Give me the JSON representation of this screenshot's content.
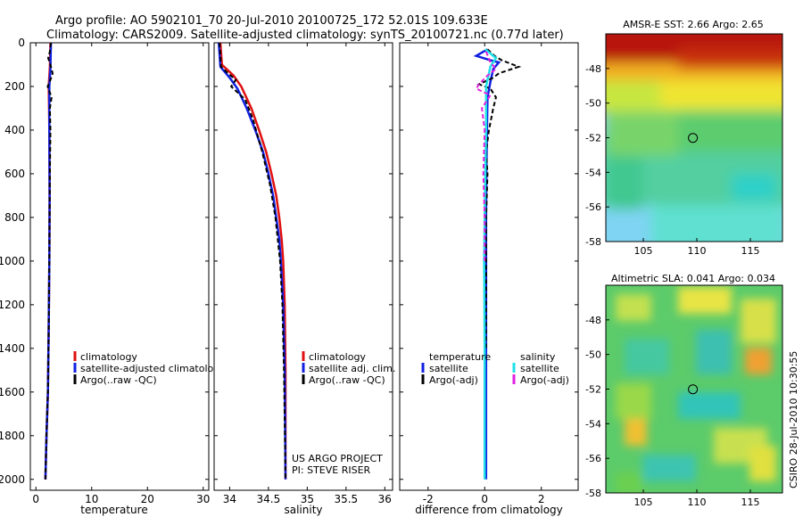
{
  "title_line1": "Argo profile: AO 5902101_70 20-Jul-2010 20100725_172 52.01S 109.633E",
  "title_line2": "Climatology: CARS2009. Satellite-adjusted climatology: synTS_20100721.nc (0.77d later)",
  "side_label": "CSIRO 28-Jul-2010 10:30:55",
  "colors": {
    "climatology": "#e01010",
    "satellite": "#1020e0",
    "argo": "#000000",
    "sal_satellite": "#20e0e8",
    "sal_argo": "#e020e0"
  },
  "chart_data": [
    {
      "type": "line",
      "name": "temperature-profile",
      "xlabel": "temperature",
      "ylabel": "",
      "xlim": [
        -1,
        31
      ],
      "ylim": [
        2050,
        0
      ],
      "xticks": [
        0,
        10,
        20,
        30
      ],
      "yticks": [
        0,
        200,
        400,
        600,
        800,
        1000,
        1200,
        1400,
        1600,
        1800,
        2000
      ],
      "series": [
        {
          "name": "climatology",
          "color": "#e01010",
          "style": "solid",
          "points": [
            [
              2.6,
              0
            ],
            [
              2.55,
              60
            ],
            [
              2.5,
              110
            ],
            [
              2.3,
              200
            ],
            [
              2.4,
              400
            ],
            [
              2.45,
              700
            ],
            [
              2.4,
              1000
            ],
            [
              2.3,
              1300
            ],
            [
              2.15,
              1600
            ],
            [
              1.9,
              1800
            ],
            [
              1.7,
              2000
            ]
          ]
        },
        {
          "name": "satellite-adjusted climatology",
          "color": "#1020e0",
          "style": "solid",
          "points": [
            [
              2.7,
              0
            ],
            [
              2.65,
              60
            ],
            [
              2.6,
              120
            ],
            [
              2.4,
              200
            ],
            [
              2.4,
              400
            ],
            [
              2.45,
              700
            ],
            [
              2.4,
              1000
            ],
            [
              2.3,
              1300
            ],
            [
              2.15,
              1600
            ],
            [
              1.9,
              1800
            ],
            [
              1.7,
              2000
            ]
          ]
        },
        {
          "name": "Argo(..raw -QC)",
          "color": "#000000",
          "style": "dashed",
          "points": [
            [
              2.7,
              0
            ],
            [
              2.5,
              40
            ],
            [
              2.2,
              70
            ],
            [
              2.6,
              100
            ],
            [
              3.0,
              140
            ],
            [
              2.6,
              170
            ],
            [
              2.1,
              200
            ],
            [
              2.8,
              250
            ],
            [
              2.5,
              300
            ],
            [
              2.6,
              400
            ],
            [
              2.5,
              600
            ],
            [
              2.45,
              800
            ],
            [
              2.4,
              1000
            ],
            [
              2.3,
              1300
            ],
            [
              2.15,
              1600
            ],
            [
              1.9,
              1800
            ],
            [
              1.7,
              2000
            ]
          ]
        }
      ],
      "legend": {
        "position": "center",
        "entries": [
          "climatology",
          "satellite-adjusted climatology",
          "Argo(..raw -QC)"
        ]
      }
    },
    {
      "type": "line",
      "name": "salinity-profile",
      "xlabel": "salinity",
      "ylabel": "",
      "xlim": [
        33.8,
        36.1
      ],
      "ylim": [
        2050,
        0
      ],
      "xticks": [
        34,
        34.5,
        35,
        35.5,
        36
      ],
      "series": [
        {
          "name": "climatology",
          "color": "#e01010",
          "style": "solid",
          "points": [
            [
              33.88,
              0
            ],
            [
              33.9,
              100
            ],
            [
              34.05,
              150
            ],
            [
              34.15,
              200
            ],
            [
              34.28,
              300
            ],
            [
              34.38,
              400
            ],
            [
              34.47,
              500
            ],
            [
              34.54,
              600
            ],
            [
              34.6,
              700
            ],
            [
              34.64,
              800
            ],
            [
              34.67,
              900
            ],
            [
              34.69,
              1000
            ],
            [
              34.71,
              1200
            ],
            [
              34.72,
              1500
            ],
            [
              34.72,
              2000
            ]
          ]
        },
        {
          "name": "satellite adj. clim.",
          "color": "#1020e0",
          "style": "solid",
          "points": [
            [
              33.86,
              0
            ],
            [
              33.88,
              110
            ],
            [
              34.0,
              160
            ],
            [
              34.1,
              210
            ],
            [
              34.22,
              300
            ],
            [
              34.33,
              400
            ],
            [
              34.43,
              500
            ],
            [
              34.5,
              600
            ],
            [
              34.56,
              700
            ],
            [
              34.6,
              800
            ],
            [
              34.64,
              900
            ],
            [
              34.66,
              1000
            ],
            [
              34.69,
              1200
            ],
            [
              34.71,
              1500
            ],
            [
              34.72,
              2000
            ]
          ]
        },
        {
          "name": "Argo(..raw -QC)",
          "color": "#000000",
          "style": "dashed",
          "points": [
            [
              33.87,
              0
            ],
            [
              33.89,
              110
            ],
            [
              33.98,
              140
            ],
            [
              34.08,
              170
            ],
            [
              34.02,
              200
            ],
            [
              34.2,
              260
            ],
            [
              34.3,
              350
            ],
            [
              34.42,
              500
            ],
            [
              34.52,
              650
            ],
            [
              34.59,
              800
            ],
            [
              34.65,
              1000
            ],
            [
              34.68,
              1200
            ],
            [
              34.7,
              1500
            ],
            [
              34.72,
              2000
            ]
          ]
        }
      ],
      "legend": {
        "position": "lower-right",
        "entries": [
          "climatology",
          "satellite adj. clim.",
          "Argo(..raw -QC)"
        ]
      },
      "annotation_line1": "US ARGO PROJECT",
      "annotation_line2": "PI: STEVE RISER"
    },
    {
      "type": "line",
      "name": "difference-profile",
      "xlabel": "difference from climatology",
      "ylabel": "",
      "xlim": [
        -3,
        3.3
      ],
      "ylim": [
        2050,
        0
      ],
      "xticks": [
        -2,
        0,
        2
      ],
      "series": [
        {
          "name": "temperature satellite",
          "color": "#1020e0",
          "style": "solid",
          "points": [
            [
              0.1,
              30
            ],
            [
              -0.3,
              60
            ],
            [
              0.2,
              80
            ],
            [
              0.5,
              90
            ],
            [
              0.3,
              120
            ],
            [
              0.2,
              180
            ],
            [
              0.1,
              250
            ],
            [
              0.08,
              400
            ],
            [
              0.06,
              600
            ],
            [
              0.05,
              800
            ],
            [
              0.05,
              1000
            ],
            [
              0.05,
              1400
            ],
            [
              0.05,
              2000
            ]
          ]
        },
        {
          "name": "temperature Argo(-adj)",
          "color": "#000000",
          "style": "dashed",
          "points": [
            [
              0.1,
              30
            ],
            [
              0.35,
              60
            ],
            [
              0.6,
              80
            ],
            [
              1.2,
              110
            ],
            [
              0.5,
              140
            ],
            [
              0.3,
              160
            ],
            [
              -0.2,
              190
            ],
            [
              0.2,
              210
            ],
            [
              0.4,
              250
            ],
            [
              0.3,
              300
            ],
            [
              0.15,
              400
            ],
            [
              0.05,
              500
            ],
            [
              0.1,
              600
            ],
            [
              0.05,
              800
            ],
            [
              0.05,
              1000
            ],
            [
              0.05,
              1200
            ],
            [
              0.05,
              1400
            ]
          ]
        },
        {
          "name": "salinity satellite",
          "color": "#20e0e8",
          "style": "solid",
          "points": [
            [
              0.02,
              30
            ],
            [
              0.4,
              70
            ],
            [
              0.2,
              110
            ],
            [
              0.05,
              200
            ],
            [
              0.05,
              400
            ],
            [
              0.02,
              600
            ],
            [
              0.0,
              800
            ],
            [
              -0.02,
              1000
            ],
            [
              0.0,
              1400
            ],
            [
              0.0,
              2000
            ]
          ]
        },
        {
          "name": "salinity Argo(-adj)",
          "color": "#e020e0",
          "style": "dashed",
          "points": [
            [
              0.05,
              40
            ],
            [
              0.2,
              90
            ],
            [
              0.4,
              120
            ],
            [
              0.1,
              150
            ],
            [
              -0.2,
              190
            ],
            [
              -0.3,
              210
            ],
            [
              0.2,
              240
            ],
            [
              -0.1,
              300
            ],
            [
              0.0,
              400
            ],
            [
              -0.05,
              600
            ],
            [
              0.0,
              800
            ],
            [
              0.0,
              1000
            ]
          ]
        }
      ],
      "legend": {
        "position": "lower-center",
        "temperature_heading": "temperature",
        "salinity_heading": "salinity",
        "entries": [
          "satellite",
          "Argo(-adj)",
          "satellite",
          "Argo(-adj)"
        ]
      }
    },
    {
      "type": "heatmap",
      "name": "sst-map",
      "title": "AMSR-E SST: 2.66  Argo: 2.65",
      "xticks": [
        105,
        110,
        115
      ],
      "yticks": [
        -48,
        -50,
        -52,
        -54,
        -56,
        -58
      ],
      "xlim": [
        101.5,
        118
      ],
      "ylim": [
        -58,
        -46
      ],
      "marker": [
        109.633,
        -52.01
      ]
    },
    {
      "type": "heatmap",
      "name": "sla-map",
      "title": "Altimetric SLA: 0.041  Argo: 0.034",
      "xticks": [
        105,
        110,
        115
      ],
      "yticks": [
        -48,
        -50,
        -52,
        -54,
        -56,
        -58
      ],
      "xlim": [
        101.5,
        118
      ],
      "ylim": [
        -58,
        -46
      ],
      "marker": [
        109.633,
        -52.01
      ]
    }
  ]
}
